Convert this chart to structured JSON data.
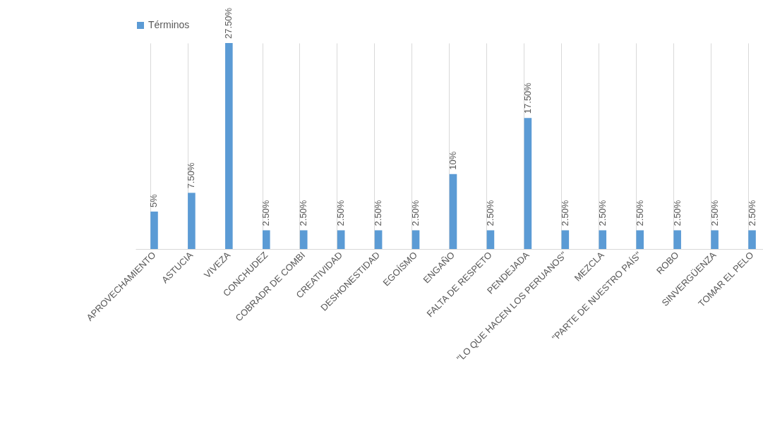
{
  "chart_data": {
    "type": "bar",
    "categories": [
      "APROVECHAMIENTO",
      "ASTUCIA",
      "VIVEZA",
      "CONCHUDEZ",
      "COBRADR DE COMBI",
      "CREATIVIDAD",
      "DESHONESTIDAD",
      "EGOÍSMO",
      "ENGAÑO",
      "FALTA DE RESPETO",
      "PENDEJADA",
      "\"LO QUE HACEN LOS PERUANOS\"",
      "MEZCLA",
      "\"PARTE DE NUESTRO PAÍS\"",
      "ROBO",
      "SINVERGÜENZA",
      "TOMAR EL PELO"
    ],
    "series": [
      {
        "name": "Términos",
        "color": "#5b9bd5",
        "values": [
          5,
          7.5,
          27.5,
          2.5,
          2.5,
          2.5,
          2.5,
          2.5,
          10,
          2.5,
          17.5,
          2.5,
          2.5,
          2.5,
          2.5,
          2.5,
          2.5
        ],
        "value_labels": [
          "5%",
          "7.50%",
          "27.50%",
          "2.50%",
          "2.50%",
          "2.50%",
          "2.50%",
          "2.50%",
          "10%",
          "2.50%",
          "17.50%",
          "2.50%",
          "2.50%",
          "2.50%",
          "2.50%",
          "2.50%",
          "2.50%"
        ]
      }
    ],
    "legend": "top",
    "grid": "x"
  }
}
